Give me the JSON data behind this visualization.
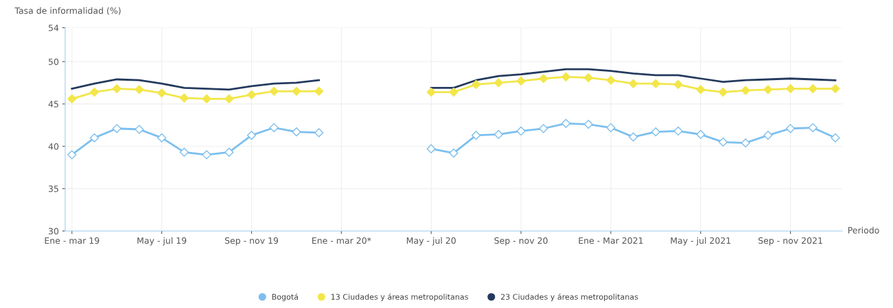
{
  "chart_data": {
    "type": "line",
    "ylabel": "Tasa de informalidad (%)",
    "xlabel": "Periodo",
    "categories": [
      "Ene - mar 19",
      null,
      null,
      null,
      "May - jul 19",
      null,
      null,
      null,
      "Sep - nov 19",
      null,
      null,
      null,
      "Ene - mar 20*",
      null,
      null,
      null,
      "May - jul 20",
      null,
      null,
      null,
      "Sep - nov 20",
      null,
      null,
      null,
      "Ene - Mar 2021",
      null,
      null,
      null,
      "May - jul 2021",
      null,
      null,
      null,
      "Sep - nov 2021",
      null,
      null
    ],
    "ylim": [
      30,
      54
    ],
    "yticks": [
      30,
      35,
      40,
      45,
      50,
      54
    ],
    "grid": true,
    "legend": "bottom",
    "series": [
      {
        "name": "Bogotá",
        "color": "#7cbfee",
        "marker": "diamond",
        "values": [
          39.0,
          41.0,
          42.1,
          42.0,
          41.0,
          39.3,
          39.0,
          39.3,
          41.3,
          42.2,
          41.7,
          41.6,
          null,
          null,
          null,
          null,
          39.7,
          39.2,
          41.3,
          41.4,
          41.8,
          42.1,
          42.7,
          42.6,
          42.2,
          41.1,
          41.7,
          41.8,
          41.4,
          40.5,
          40.4,
          41.3,
          42.1,
          42.2,
          41.0
        ]
      },
      {
        "name": "13 Ciudades y áreas metropolitanas",
        "color": "#f2e64a",
        "marker": "diamond",
        "values": [
          45.6,
          46.4,
          46.8,
          46.7,
          46.3,
          45.7,
          45.6,
          45.6,
          46.1,
          46.5,
          46.5,
          46.5,
          null,
          null,
          null,
          null,
          46.4,
          46.4,
          47.3,
          47.5,
          47.7,
          48.0,
          48.2,
          48.1,
          47.8,
          47.4,
          47.4,
          47.3,
          46.7,
          46.4,
          46.6,
          46.7,
          46.8,
          46.8,
          46.8
        ]
      },
      {
        "name": "23 Ciudades y áreas metropolitanas",
        "color": "#243a5e",
        "marker": "none",
        "values": [
          46.8,
          47.4,
          47.9,
          47.8,
          47.4,
          46.9,
          46.8,
          46.7,
          47.1,
          47.4,
          47.5,
          47.8,
          null,
          null,
          null,
          null,
          46.9,
          46.9,
          47.8,
          48.3,
          48.5,
          48.8,
          49.1,
          49.1,
          48.9,
          48.6,
          48.4,
          48.4,
          48.0,
          47.6,
          47.8,
          47.9,
          48.0,
          47.9,
          47.8
        ]
      }
    ]
  }
}
